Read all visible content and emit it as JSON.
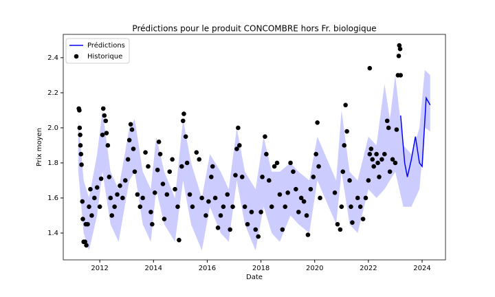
{
  "chart_data": {
    "type": "line",
    "title": "Prédictions pour le produit CONCOMBRE hors Fr. biologique",
    "x_label": "Date",
    "y_label": "Prix moyen",
    "xlim": [
      2010.64,
      2024.87
    ],
    "xticks": [
      2012,
      2014,
      2016,
      2018,
      2020,
      2022,
      2024
    ],
    "ylim": [
      1.247,
      2.533
    ],
    "yticks": [
      1.4,
      1.6,
      1.8,
      {
        "value": 2,
        "label": "2.0"
      },
      2.2,
      2.4
    ],
    "legend": "upper left",
    "interval": {
      "color": "#0000ff",
      "x": [
        2011.2,
        2011.4,
        2011.6,
        2011.9,
        2012.1,
        2012.4,
        2012.7,
        2013.1,
        2013.3,
        2013.6,
        2013.9,
        2014.1,
        2014.4,
        2014.8,
        2015.1,
        2015.4,
        2015.8,
        2016.1,
        2016.5,
        2016.8,
        2017.1,
        2017.4,
        2017.8,
        2018.1,
        2018.4,
        2018.7,
        2019.1,
        2019.4,
        2019.8,
        2020.1,
        2020.8,
        2021.0,
        2021.3,
        2021.6,
        2022.0,
        2022.3,
        2022.6,
        2022.8,
        2023.0,
        2023.3,
        2023.6,
        2023.9,
        2024.1,
        2024.3
      ],
      "upper": [
        2.05,
        1.7,
        1.6,
        1.85,
        2.1,
        1.75,
        1.65,
        2.0,
        2.05,
        1.75,
        1.65,
        1.95,
        1.75,
        1.6,
        2.05,
        1.8,
        1.6,
        1.85,
        1.75,
        1.65,
        2.0,
        1.75,
        1.65,
        1.95,
        1.75,
        1.75,
        1.8,
        1.75,
        1.7,
        1.95,
        1.7,
        2.1,
        1.75,
        1.7,
        1.95,
        1.9,
        2.25,
        2.05,
        2.3,
        1.9,
        1.85,
        2.0,
        2.33,
        2.3
      ],
      "lower": [
        1.75,
        1.4,
        1.3,
        1.5,
        1.75,
        1.45,
        1.35,
        1.7,
        1.75,
        1.45,
        1.35,
        1.65,
        1.45,
        1.35,
        1.7,
        1.45,
        1.3,
        1.55,
        1.4,
        1.35,
        1.7,
        1.45,
        1.3,
        1.55,
        1.4,
        1.35,
        1.5,
        1.45,
        1.4,
        1.7,
        1.45,
        1.75,
        1.45,
        1.4,
        1.65,
        1.6,
        1.65,
        1.7,
        1.75,
        1.55,
        1.55,
        1.65,
        2.0,
        1.98
      ]
    },
    "series": [
      {
        "name": "Prédictions",
        "color": "#0000ff",
        "x": [
          2023.2,
          2023.35,
          2023.45,
          2023.6,
          2023.75,
          2023.9,
          2024.0,
          2024.15,
          2024.3
        ],
        "values": [
          2.07,
          1.8,
          1.72,
          1.82,
          1.95,
          1.8,
          1.78,
          2.17,
          2.13
        ]
      },
      {
        "name": "Historique",
        "type": "scatter",
        "color": "#000000",
        "x": [
          2011.22,
          2011.24,
          2011.25,
          2011.27,
          2011.28,
          2011.3,
          2011.32,
          2011.35,
          2011.37,
          2011.4,
          2011.45,
          2011.5,
          2011.48,
          2011.55,
          2011.6,
          2011.65,
          2011.7,
          2011.8,
          2011.9,
          2012.0,
          2012.05,
          2012.1,
          2012.13,
          2012.17,
          2012.22,
          2012.25,
          2012.3,
          2012.35,
          2012.4,
          2012.45,
          2012.55,
          2012.65,
          2012.75,
          2012.85,
          2012.95,
          2013.05,
          2013.1,
          2013.15,
          2013.2,
          2013.25,
          2013.3,
          2013.4,
          2013.5,
          2013.6,
          2013.7,
          2013.8,
          2013.9,
          2013.95,
          2014.05,
          2014.15,
          2014.2,
          2014.25,
          2014.35,
          2014.4,
          2014.5,
          2014.6,
          2014.7,
          2014.8,
          2014.9,
          2014.95,
          2015.05,
          2015.1,
          2015.13,
          2015.2,
          2015.25,
          2015.35,
          2015.45,
          2015.6,
          2015.7,
          2015.8,
          2015.95,
          2016.05,
          2016.15,
          2016.2,
          2016.3,
          2016.4,
          2016.5,
          2016.6,
          2016.75,
          2016.85,
          2016.95,
          2017.05,
          2017.1,
          2017.15,
          2017.2,
          2017.3,
          2017.4,
          2017.5,
          2017.65,
          2017.8,
          2017.9,
          2018.0,
          2018.05,
          2018.15,
          2018.2,
          2018.3,
          2018.4,
          2018.5,
          2018.6,
          2018.7,
          2018.8,
          2018.9,
          2019.0,
          2019.1,
          2019.2,
          2019.3,
          2019.4,
          2019.5,
          2019.6,
          2019.7,
          2019.75,
          2019.85,
          2019.95,
          2020.05,
          2020.1,
          2020.15,
          2020.2,
          2020.75,
          2020.85,
          2020.95,
          2021.0,
          2021.05,
          2021.1,
          2021.15,
          2021.2,
          2021.3,
          2021.35,
          2021.4,
          2021.6,
          2021.7,
          2021.8,
          2021.9,
          2022.0,
          2022.05,
          2022.1,
          2022.15,
          2022.2,
          2022.3,
          2022.35,
          2022.4,
          2022.5,
          2022.6,
          2022.7,
          2022.75,
          2022.8,
          2022.9,
          2023.0,
          2023.05,
          2023.1,
          2023.13,
          2023.15,
          2023.18,
          2023.2,
          2022.05
        ],
        "values": [
          2.11,
          2.1,
          2.0,
          1.96,
          1.9,
          1.85,
          1.79,
          1.58,
          1.48,
          1.35,
          1.35,
          1.33,
          1.45,
          1.45,
          1.55,
          1.65,
          1.5,
          1.6,
          1.66,
          1.55,
          1.71,
          1.96,
          2.11,
          2.07,
          2.04,
          1.97,
          1.9,
          1.72,
          1.6,
          1.5,
          1.55,
          1.62,
          1.67,
          1.6,
          1.7,
          1.82,
          1.93,
          2.02,
          1.99,
          1.88,
          1.75,
          1.62,
          1.55,
          1.6,
          1.86,
          1.78,
          1.52,
          1.45,
          1.63,
          1.76,
          1.92,
          1.85,
          1.68,
          1.48,
          1.62,
          1.75,
          1.82,
          1.65,
          1.55,
          1.36,
          1.78,
          2.04,
          2.08,
          1.95,
          1.8,
          1.62,
          1.55,
          1.86,
          1.82,
          1.6,
          1.5,
          1.58,
          1.72,
          1.78,
          1.6,
          1.43,
          1.5,
          1.55,
          1.62,
          1.42,
          1.55,
          1.73,
          1.88,
          2.0,
          1.9,
          1.72,
          1.55,
          1.45,
          1.52,
          1.42,
          1.38,
          1.52,
          1.72,
          1.95,
          1.85,
          1.7,
          1.55,
          1.78,
          1.8,
          1.62,
          1.42,
          1.55,
          1.63,
          1.8,
          1.75,
          1.65,
          1.52,
          1.6,
          1.58,
          1.5,
          1.39,
          1.65,
          1.72,
          1.85,
          2.03,
          1.78,
          1.6,
          1.63,
          1.45,
          1.42,
          1.55,
          1.75,
          1.9,
          2.13,
          1.98,
          1.7,
          1.55,
          1.46,
          1.6,
          1.55,
          1.48,
          1.6,
          1.7,
          1.85,
          1.88,
          1.82,
          1.78,
          1.85,
          1.8,
          1.72,
          1.82,
          1.85,
          2.04,
          2.0,
          1.75,
          1.82,
          1.8,
          1.99,
          2.3,
          2.41,
          2.47,
          2.45,
          2.3,
          2.34
        ]
      }
    ]
  }
}
